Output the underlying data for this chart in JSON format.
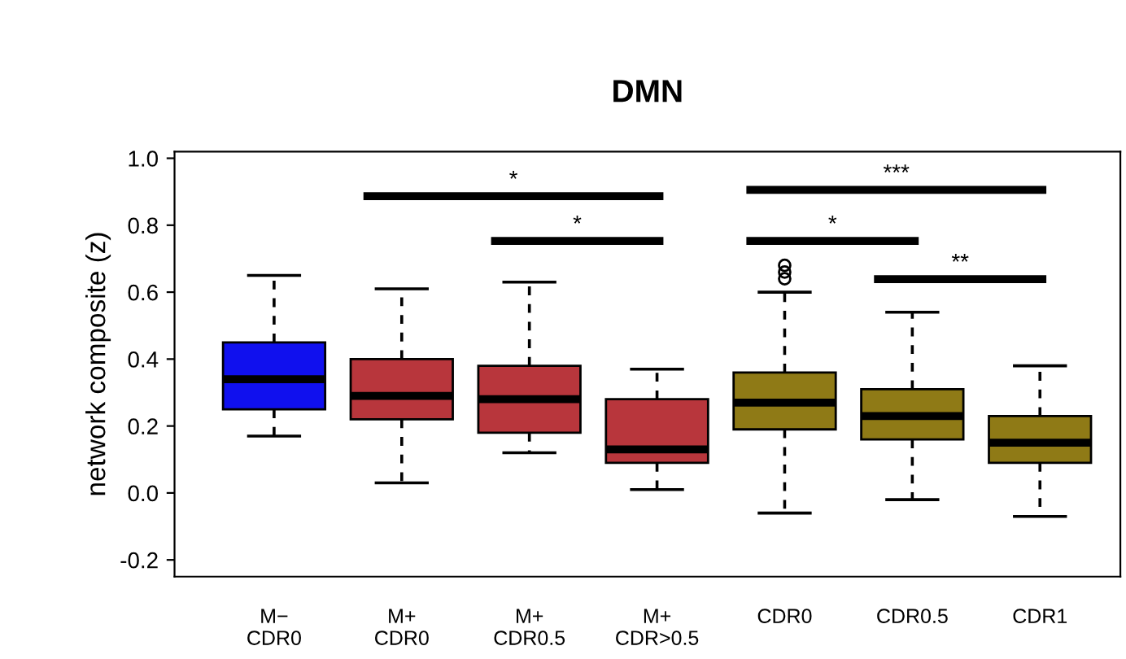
{
  "chart_data": {
    "type": "box",
    "title": "DMN",
    "ylabel": "network composite (z)",
    "categories": [
      "M−\nCDR0",
      "M+\nCDR0",
      "M+\nCDR0.5",
      "M+\nCDR>0.5",
      "CDR0",
      "CDR0.5",
      "CDR1"
    ],
    "colors": [
      "#1010ee",
      "#b8363c",
      "#b8363c",
      "#b8363c",
      "#8f7a16",
      "#8f7a16",
      "#8f7a16"
    ],
    "boxes": [
      {
        "low": 0.17,
        "q1": 0.25,
        "median": 0.34,
        "q3": 0.45,
        "high": 0.65
      },
      {
        "low": 0.03,
        "q1": 0.22,
        "median": 0.29,
        "q3": 0.4,
        "high": 0.61
      },
      {
        "low": 0.12,
        "q1": 0.18,
        "median": 0.28,
        "q3": 0.38,
        "high": 0.63
      },
      {
        "low": 0.01,
        "q1": 0.09,
        "median": 0.13,
        "q3": 0.28,
        "high": 0.37
      },
      {
        "low": -0.06,
        "q1": 0.19,
        "median": 0.27,
        "q3": 0.36,
        "high": 0.6,
        "outliers": [
          0.64,
          0.66,
          0.68
        ]
      },
      {
        "low": -0.02,
        "q1": 0.16,
        "median": 0.23,
        "q3": 0.31,
        "high": 0.54
      },
      {
        "low": -0.07,
        "q1": 0.09,
        "median": 0.15,
        "q3": 0.23,
        "high": 0.38
      }
    ],
    "ylim": [
      -0.25,
      1.02
    ],
    "yticks": [
      {
        "value": -0.2,
        "label": "-0.2"
      },
      {
        "value": 0,
        "label": "0.0"
      },
      0.2,
      0.4,
      0.6,
      0.8,
      {
        "value": 1,
        "label": "1.0"
      }
    ],
    "annotations": [
      "*",
      "*",
      "***",
      "*",
      "**"
    ],
    "grid": false
  }
}
